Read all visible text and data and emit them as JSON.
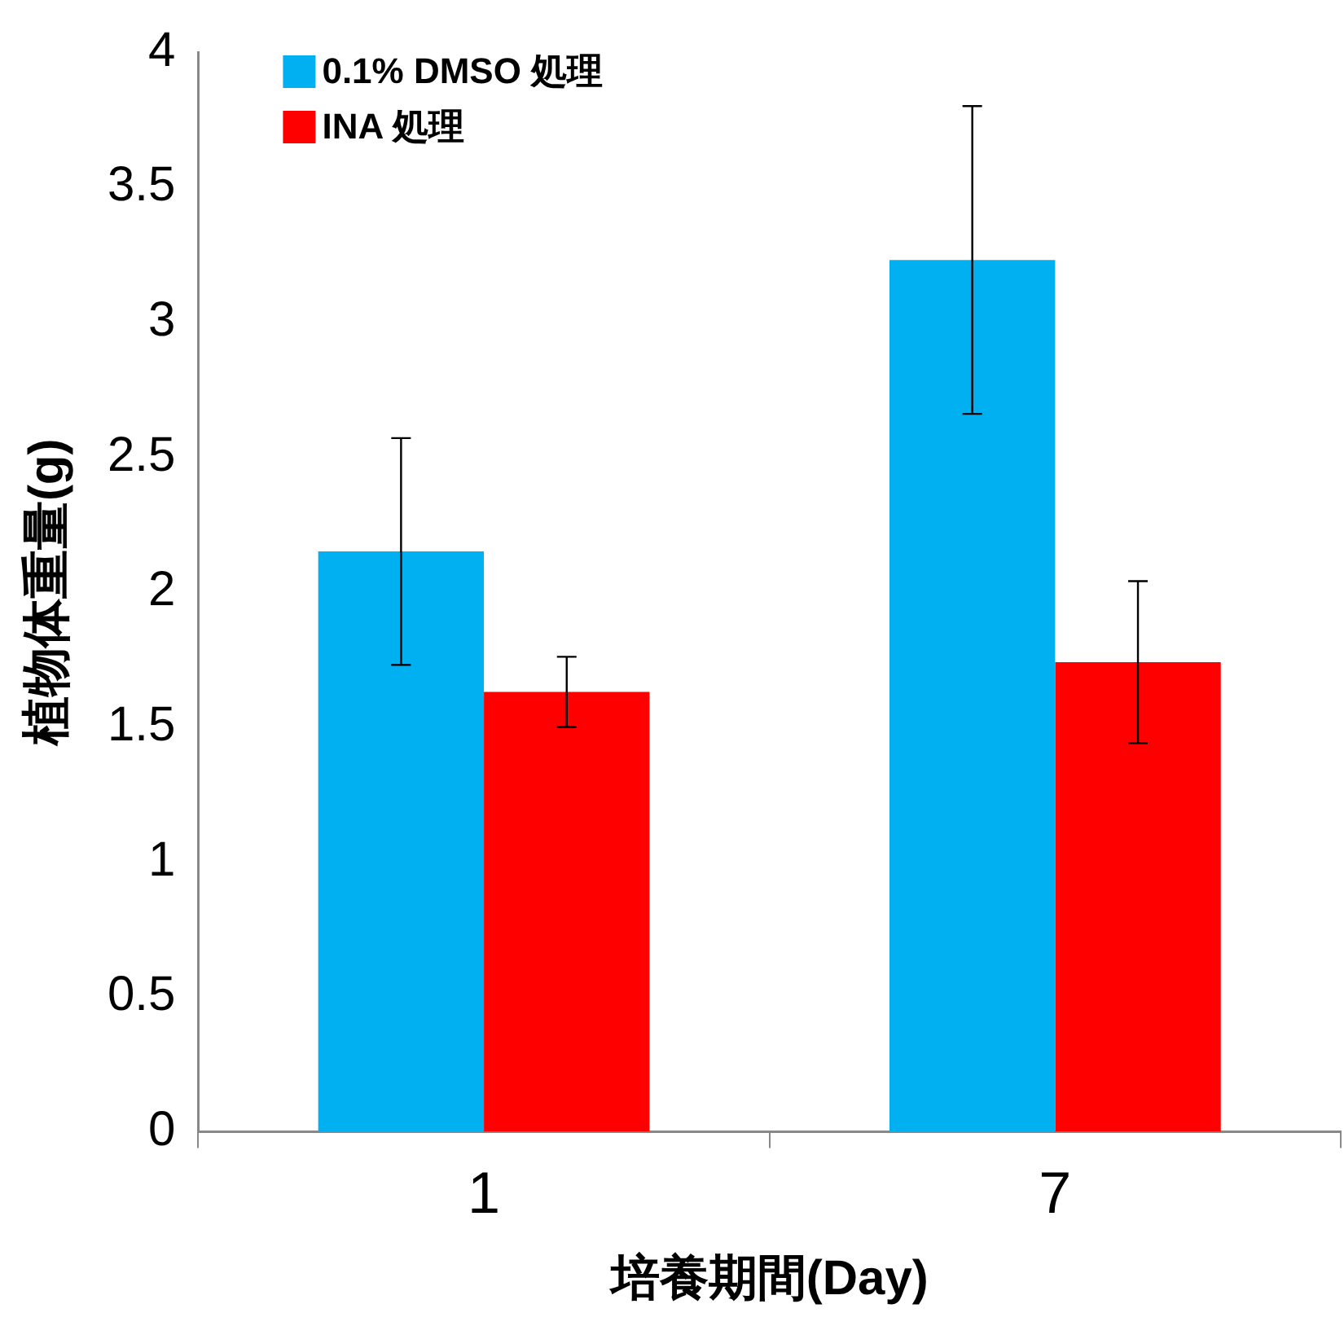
{
  "chart_data": {
    "type": "bar",
    "xlabel": "培養期間(Day)",
    "ylabel": "植物体重量(g)",
    "categories": [
      "1",
      "7"
    ],
    "series": [
      {
        "name": "0.1% DMSO 処理",
        "color": "#00b0f0",
        "values": [
          2.15,
          3.23
        ],
        "errors": [
          0.42,
          0.57
        ]
      },
      {
        "name": "INA 処理",
        "color": "#ff0000",
        "values": [
          1.63,
          1.74
        ],
        "errors": [
          0.13,
          0.3
        ]
      }
    ],
    "ylim": [
      0,
      4
    ],
    "yticks": [
      0,
      0.5,
      1,
      1.5,
      2,
      2.5,
      3,
      3.5,
      4
    ],
    "grid": false,
    "legend": "top left"
  }
}
